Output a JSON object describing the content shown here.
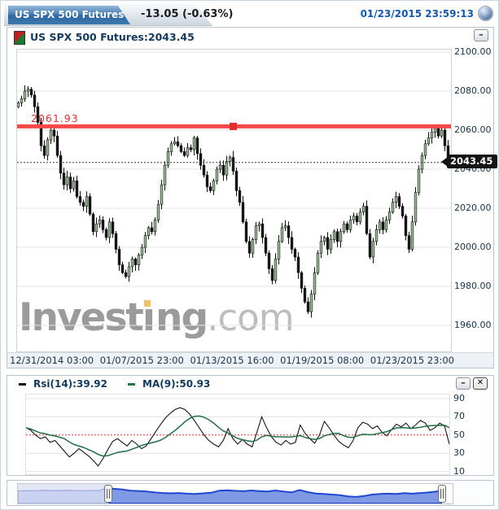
{
  "header": {
    "tab_label": "US SPX 500 Futures (...",
    "change": "-13.05 (-0.63%)",
    "datetime": "01/23/2015 23:59:13"
  },
  "legend": {
    "label": "US SPX 500 Futures:2043.45"
  },
  "icons": {
    "minimize": "–",
    "close": "✕"
  },
  "watermark": {
    "part1": "Invest",
    "dotless_i": "ı",
    "part2": "ng",
    "suffix": ".com"
  },
  "main_chart": {
    "hline_label": "2061.93",
    "last_price": "2043.45",
    "y_ticks": [
      "2100.00",
      "2080.00",
      "2060.00",
      "2040.00",
      "2020.00",
      "2000.00",
      "1980.00",
      "1960.00"
    ],
    "x_ticks": [
      "12/31/2014 03:00",
      "01/07/2015 23:00",
      "01/13/2015 16:00",
      "01/19/2015 08:00",
      "01/23/2015 23:00"
    ]
  },
  "rsi_panel": {
    "rsi_label": "Rsi(14):39.92",
    "ma_label": "MA(9):50.93",
    "y_ticks": [
      "90",
      "70",
      "50",
      "30",
      "10"
    ]
  },
  "colors": {
    "accent_red": "#e03030",
    "hline_red": "#f94848",
    "candle_up_fill": "#9dbf97",
    "candle_down_fill": "#131313",
    "candle_stroke": "#111111",
    "grid": "#e5e5e5",
    "rsi_line": "#151515",
    "ma_line": "#1f6f45",
    "nav_line": "#2047d0",
    "nav_fill": "#7590e2",
    "nav_light_fill": "#c9d2f0",
    "nav_light_line": "#9fadde",
    "nav_unselected_bg": "#e3e7f5",
    "tab_blue": "#2e67a1",
    "datetime_blue": "#1558b0"
  },
  "chart_data": [
    {
      "id": "price",
      "type": "candlestick",
      "title": "US SPX 500 Futures",
      "ylim": [
        1956,
        2103
      ],
      "grid_values": [
        2100,
        2080,
        2060,
        2040,
        2020,
        2000,
        1980,
        1960
      ],
      "x_axis_labels": [
        "12/31/2014 03:00",
        "01/07/2015 23:00",
        "01/13/2015 16:00",
        "01/19/2015 08:00",
        "01/23/2015 23:00"
      ],
      "hline": {
        "value": 2061.93,
        "label": "2061.93"
      },
      "last_price": 2043.45,
      "first_open": 2072,
      "closes": [
        2074,
        2076,
        2080,
        2081,
        2078,
        2072,
        2064,
        2052,
        2047,
        2055,
        2060,
        2057,
        2047,
        2038,
        2032,
        2036,
        2030,
        2034,
        2026,
        2023,
        2021,
        2026,
        2017,
        2008,
        2012,
        2014,
        2009,
        2005,
        2013,
        2007,
        1999,
        1991,
        1987,
        1985,
        1990,
        1994,
        1991,
        1996,
        2000,
        2006,
        2010,
        2008,
        2014,
        2022,
        2032,
        2042,
        2049,
        2053,
        2054,
        2052,
        2049,
        2047,
        2051,
        2050,
        2056,
        2048,
        2042,
        2037,
        2031,
        2029,
        2034,
        2040,
        2042,
        2037,
        2044,
        2046,
        2039,
        2029,
        2023,
        2013,
        2003,
        1997,
        2004,
        2011,
        2012,
        2005,
        1997,
        1989,
        1983,
        1994,
        2003,
        2010,
        2011,
        2005,
        1999,
        1995,
        1987,
        1979,
        1972,
        1967,
        1976,
        1987,
        1997,
        2003,
        2005,
        1999,
        2004,
        2008,
        2003,
        2008,
        2012,
        2009,
        2014,
        2016,
        2013,
        2018,
        2021,
        2007,
        1995,
        2003,
        2009,
        2013,
        2009,
        2014,
        2018,
        2023,
        2026,
        2021,
        2016,
        2006,
        1999,
        2013,
        2028,
        2040,
        2047,
        2053,
        2056,
        2059,
        2061,
        2057,
        2060,
        2052,
        2043.45
      ]
    },
    {
      "id": "rsi",
      "type": "line",
      "series": [
        {
          "name": "Rsi(14)",
          "last_value": 39.92
        },
        {
          "name": "MA(9)",
          "last_value": 50.93,
          "derived": "trailing mean of Rsi(14), window 9"
        }
      ],
      "y_ticks": [
        90,
        70,
        50,
        30,
        10
      ],
      "midline": 50,
      "ylim": [
        5,
        95
      ],
      "values": [
        58,
        55,
        50,
        46,
        48,
        42,
        44,
        38,
        32,
        26,
        30,
        35,
        31,
        27,
        22,
        16,
        24,
        34,
        43,
        46,
        42,
        38,
        44,
        40,
        35,
        38,
        46,
        54,
        62,
        69,
        74,
        78,
        80,
        78,
        73,
        66,
        58,
        50,
        44,
        40,
        37,
        44,
        57,
        46,
        40,
        45,
        40,
        37,
        53,
        70,
        58,
        48,
        42,
        39,
        44,
        40,
        42,
        61,
        52,
        46,
        41,
        50,
        65,
        58,
        50,
        43,
        39,
        36,
        44,
        58,
        64,
        62,
        57,
        60,
        53,
        49,
        56,
        62,
        59,
        63,
        57,
        61,
        66,
        63,
        55,
        58,
        63,
        60,
        40
      ]
    },
    {
      "id": "navigator",
      "type": "area",
      "selection": {
        "start_frac": 0.208,
        "end_frac": 0.9757
      },
      "values": [
        0.7,
        0.72,
        0.71,
        0.74,
        0.73,
        0.72,
        0.74,
        0.73,
        0.71,
        0.73,
        0.72,
        0.88,
        0.84,
        0.8,
        0.72,
        0.7,
        0.66,
        0.6,
        0.56,
        0.54,
        0.56,
        0.52,
        0.5,
        0.54,
        0.58,
        0.72,
        0.74,
        0.71,
        0.68,
        0.73,
        0.69,
        0.66,
        0.73,
        0.66,
        0.6,
        0.76,
        0.62,
        0.53,
        0.5,
        0.46,
        0.42,
        0.34,
        0.3,
        0.36,
        0.46,
        0.5,
        0.52,
        0.5,
        0.55,
        0.52,
        0.56,
        0.6,
        0.66,
        0.8,
        0.86
      ]
    }
  ]
}
